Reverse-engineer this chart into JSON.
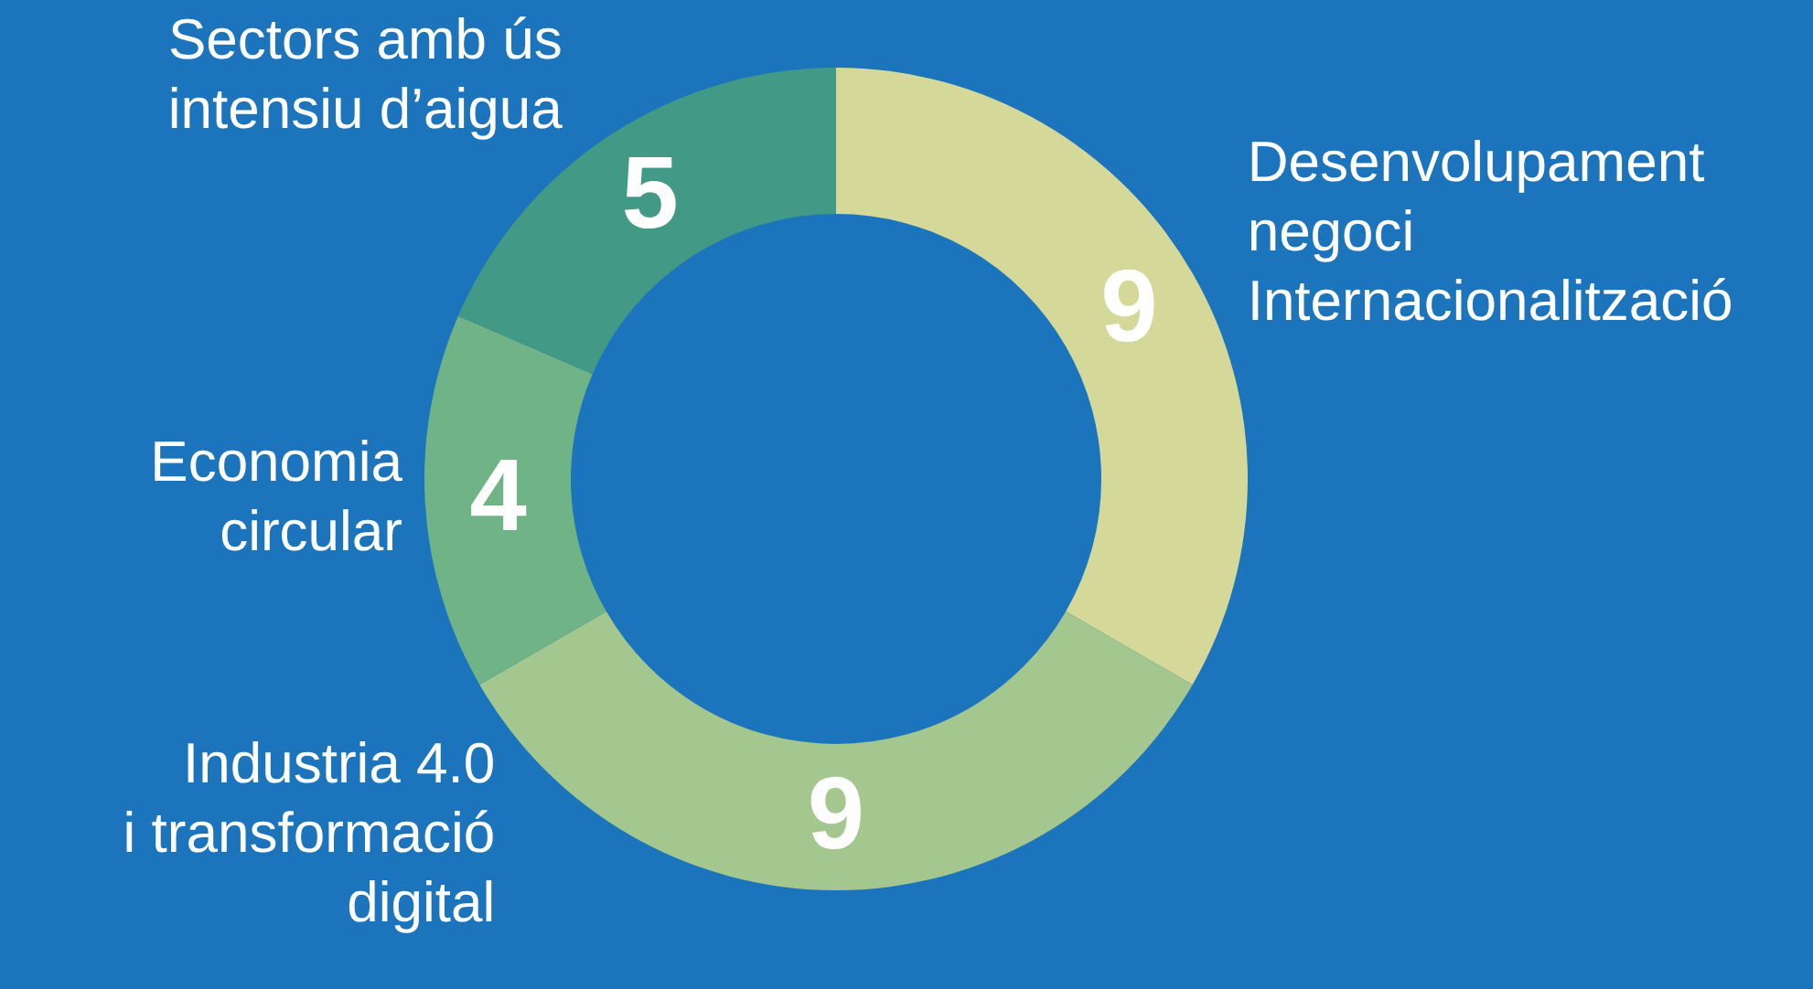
{
  "chart_data": {
    "type": "donut",
    "categories": [
      "Desenvolupament\nnegoci\nInternacionalització",
      "Industria 4.0\ni transformació\ndigital",
      "Economia\ncircular",
      "Sectors amb ús\nintensiu d’aigua"
    ],
    "values": [
      9,
      9,
      4,
      5
    ],
    "colors": [
      "#d4d99a",
      "#a3c78e",
      "#70b386",
      "#429985"
    ],
    "data_labels": true
  }
}
